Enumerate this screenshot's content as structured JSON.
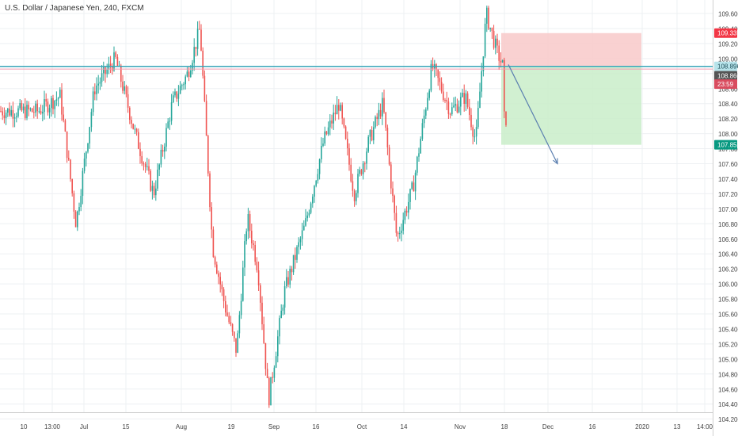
{
  "chart_data": {
    "type": "candlestick",
    "title": "U.S. Dollar / Japanese Yen, 240, FXCM",
    "y_ticks": [
      "109.600",
      "109.400",
      "109.200",
      "109.000",
      "108.800",
      "108.600",
      "108.400",
      "108.200",
      "108.000",
      "107.800",
      "107.600",
      "107.400",
      "107.200",
      "107.000",
      "106.800",
      "106.600",
      "106.400",
      "106.200",
      "106.000",
      "105.800",
      "105.600",
      "105.400",
      "105.200",
      "105.000",
      "104.800",
      "104.600",
      "104.400",
      "104.200"
    ],
    "x_ticks": [
      "10",
      "13:00",
      "Jul",
      "15",
      "Aug",
      "19",
      "Sep",
      "16",
      "Oct",
      "14",
      "Nov",
      "18",
      "Dec",
      "16",
      "2020",
      "13",
      "14:00"
    ],
    "ylim": [
      104.2,
      109.67
    ],
    "grid": true,
    "price_labels": {
      "stop_loss": "109.339",
      "current": "108.896",
      "horizontal_level": "108.860",
      "countdown": "23:59",
      "take_profit": "107.852"
    },
    "trade_setup": {
      "direction": "short",
      "entry": 108.896,
      "stop_loss": 109.339,
      "take_profit": 107.852
    },
    "horizontal_lines": [
      108.896,
      108.86
    ],
    "key_points": [
      {
        "x": "10",
        "y": 108.3
      },
      {
        "x": "13:00",
        "y": 108.5
      },
      {
        "x": "13:00",
        "y": 106.8
      },
      {
        "x": "Jul",
        "y": 108.6
      },
      {
        "x": "Jul",
        "y": 109.0
      },
      {
        "x": "15",
        "y": 108.0
      },
      {
        "x": "15",
        "y": 107.2
      },
      {
        "x": "15",
        "y": 108.4
      },
      {
        "x": "Aug",
        "y": 108.8
      },
      {
        "x": "Aug",
        "y": 109.4
      },
      {
        "x": "Aug",
        "y": 106.5
      },
      {
        "x": "Aug",
        "y": 105.7
      },
      {
        "x": "19",
        "y": 105.1
      },
      {
        "x": "19",
        "y": 106.9
      },
      {
        "x": "19",
        "y": 106.2
      },
      {
        "x": "19",
        "y": 104.45
      },
      {
        "x": "Sep",
        "y": 105.9
      },
      {
        "x": "Sep",
        "y": 106.8
      },
      {
        "x": "16",
        "y": 107.9
      },
      {
        "x": "16",
        "y": 108.4
      },
      {
        "x": "16",
        "y": 107.2
      },
      {
        "x": "Oct",
        "y": 107.9
      },
      {
        "x": "Oct",
        "y": 108.4
      },
      {
        "x": "Oct",
        "y": 106.6
      },
      {
        "x": "14",
        "y": 107.3
      },
      {
        "x": "14",
        "y": 108.9
      },
      {
        "x": "14",
        "y": 108.3
      },
      {
        "x": "Nov",
        "y": 108.5
      },
      {
        "x": "Nov",
        "y": 107.9
      },
      {
        "x": "Nov",
        "y": 109.6
      },
      {
        "x": "Nov",
        "y": 109.1
      },
      {
        "x": "18",
        "y": 108.2
      },
      {
        "x": "18",
        "y": 108.9
      }
    ],
    "colors": {
      "up": "#26a69a",
      "down": "#ef5350",
      "stop_zone": "#f8c9c9",
      "target_zone": "#c9edc9",
      "level_line": "#3aa6b9",
      "stop_label": "#f23645",
      "target_label": "#089981",
      "current_label": "#555555",
      "arrow": "#5b7fb0"
    }
  }
}
